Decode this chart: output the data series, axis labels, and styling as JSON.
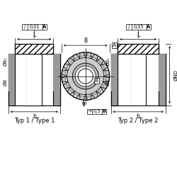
{
  "bg_color": "#ffffff",
  "line_color": "#000000",
  "title1": "Typ 1 / Type 1",
  "title2": "Typ 2 / Type 2",
  "label_L": "L",
  "label_b": "b",
  "label_B": "B",
  "label_u": "u",
  "label_Od": "Ød",
  "label_Od1": "Ød₁",
  "label_OND": "ØND",
  "label_A": "A",
  "font_size": 5.5,
  "font_size_title": 6.0,
  "font_size_tol": 4.8,
  "gray_dark": "#999999",
  "gray_light": "#cccccc",
  "gray_mid": "#bbbbbb"
}
